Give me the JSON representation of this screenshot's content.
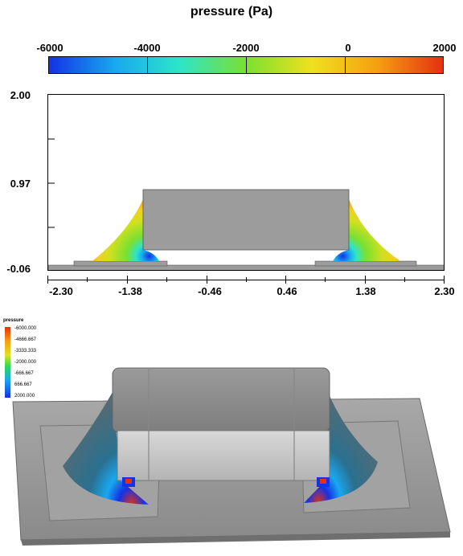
{
  "title": "pressure (Pa)",
  "colorbar": {
    "labels": [
      "-6000",
      "-4000",
      "-2000",
      "0",
      "2000"
    ],
    "colors": [
      "#1432e6",
      "#18a8f0",
      "#2ee5c8",
      "#7ae030",
      "#f0e020",
      "#f4a010",
      "#e63010"
    ]
  },
  "plot2d": {
    "y_labels": [
      "2.00",
      "0.97",
      "-0.06"
    ],
    "x_labels": [
      "-2.30",
      "-1.38",
      "-0.46",
      "0.46",
      "1.38",
      "2.30"
    ],
    "block_color": "#9c9c9c"
  },
  "legend3d": {
    "title": "pressure",
    "values": [
      "-6000.000",
      "-4666.667",
      "-3333.333",
      "-2000.000",
      "-666.667",
      "666.667",
      "2000.000"
    ]
  }
}
